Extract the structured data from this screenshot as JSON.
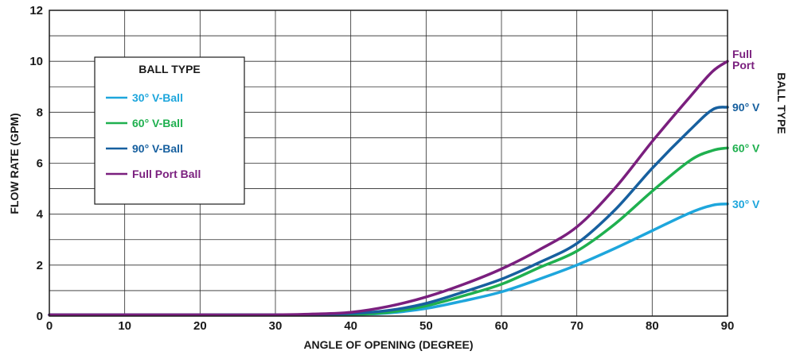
{
  "chart_data": {
    "type": "line",
    "xlabel": "ANGLE OF OPENING (DEGREE)",
    "ylabel": "FLOW RATE (GPM)",
    "right_axis_label": "BALL TYPE",
    "xlim": [
      0,
      90
    ],
    "ylim": [
      0,
      12
    ],
    "x_ticks": [
      "0",
      "10",
      "20",
      "30",
      "40",
      "50",
      "60",
      "70",
      "80",
      "90"
    ],
    "y_ticks": [
      "0",
      "2",
      "4",
      "6",
      "8",
      "10",
      "12"
    ],
    "grid": true,
    "legend": {
      "title": "BALL TYPE",
      "placement": "top-left",
      "entries": [
        "30° V-Ball",
        "60° V-Ball",
        "90° V-Ball",
        "Full Port Ball"
      ]
    },
    "x": [
      0,
      10,
      20,
      30,
      35,
      40,
      45,
      50,
      55,
      60,
      65,
      70,
      75,
      80,
      85,
      88,
      90
    ],
    "series": [
      {
        "name": "30° V-Ball",
        "end_label": "30° V",
        "color": "#1ea6dc",
        "values": [
          0.05,
          0.05,
          0.05,
          0.05,
          0.05,
          0.06,
          0.12,
          0.3,
          0.6,
          0.95,
          1.45,
          2.0,
          2.65,
          3.35,
          4.05,
          4.35,
          4.4
        ]
      },
      {
        "name": "60° V-Ball",
        "end_label": "60° V",
        "color": "#1fb04f",
        "values": [
          0.05,
          0.05,
          0.05,
          0.05,
          0.05,
          0.07,
          0.15,
          0.4,
          0.8,
          1.25,
          1.9,
          2.55,
          3.6,
          4.9,
          6.1,
          6.5,
          6.6
        ]
      },
      {
        "name": "90° V-Ball",
        "end_label": "90° V",
        "color": "#17609f",
        "values": [
          0.05,
          0.05,
          0.05,
          0.05,
          0.06,
          0.1,
          0.22,
          0.5,
          0.95,
          1.45,
          2.1,
          2.85,
          4.15,
          5.8,
          7.3,
          8.1,
          8.2
        ]
      },
      {
        "name": "Full Port Ball",
        "end_label": "Full Port",
        "end_label_lines": [
          "Full",
          "Port"
        ],
        "color": "#7a1f7e",
        "values": [
          0.05,
          0.05,
          0.05,
          0.05,
          0.08,
          0.15,
          0.38,
          0.75,
          1.25,
          1.85,
          2.6,
          3.5,
          5.0,
          6.85,
          8.6,
          9.6,
          10.0
        ]
      }
    ]
  }
}
